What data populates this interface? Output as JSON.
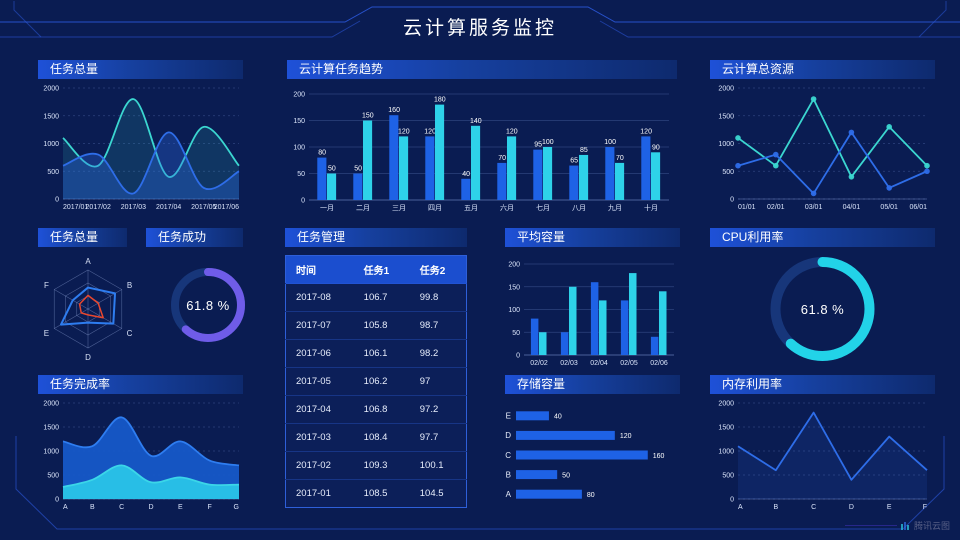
{
  "header": {
    "title": "云计算服务监控"
  },
  "watermark": {
    "label": "腾讯云图"
  },
  "colors": {
    "background": "#0a1c52",
    "accent_blue": "#1e62e6",
    "accent_cyan": "#2ed2e9",
    "accent_teal": "#3bd6d0",
    "accent_purple": "#6f5ce8",
    "accent_red": "#e8472e",
    "panel_header": "#1e51d8",
    "table_header": "#1b4ecf",
    "donut_track": "#17367a",
    "frame_line": "#2d5ae0"
  },
  "panels": {
    "task_total_line": {
      "title": "任务总量"
    },
    "task_trend": {
      "title": "云计算任务趋势"
    },
    "total_resources": {
      "title": "云计算总资源"
    },
    "task_total_radar": {
      "title": "任务总量"
    },
    "task_success": {
      "title": "任务成功",
      "value_label": "61.8 %"
    },
    "task_table": {
      "title": "任务管理"
    },
    "avg_capacity": {
      "title": "平均容量"
    },
    "cpu_usage": {
      "title": "CPU利用率",
      "value_label": "61.8 %"
    },
    "task_completion": {
      "title": "任务完成率"
    },
    "storage": {
      "title": "存储容量"
    },
    "memory": {
      "title": "内存利用率"
    }
  },
  "chart_data": [
    {
      "id": "task_total_line",
      "type": "area",
      "title": "任务总量",
      "x": [
        "2017/01",
        "2017/02",
        "2017/03",
        "2017/04",
        "2017/05",
        "2017/06"
      ],
      "series": [
        {
          "name": "series-teal",
          "color": "#3bd6d0",
          "values": [
            1100,
            600,
            1800,
            400,
            1300,
            600
          ],
          "fill_opacity": 0.14
        },
        {
          "name": "series-blue",
          "color": "#2e6de8",
          "values": [
            600,
            800,
            100,
            1200,
            200,
            500
          ],
          "fill_opacity": 0.32
        }
      ],
      "ylim": [
        0,
        2000
      ],
      "yticks": [
        0,
        500,
        1000,
        1500,
        2000
      ],
      "smooth": true,
      "grid": "dashed",
      "legend": "none"
    },
    {
      "id": "task_trend",
      "type": "bar",
      "title": "云计算任务趋势",
      "categories": [
        "一月",
        "二月",
        "三月",
        "四月",
        "五月",
        "六月",
        "七月",
        "八月",
        "九月",
        "十月"
      ],
      "series": [
        {
          "name": "任务1",
          "color": "#1e62e6",
          "values": [
            80,
            50,
            160,
            120,
            40,
            70,
            95,
            65,
            100,
            120
          ]
        },
        {
          "name": "任务2",
          "color": "#2ed2e9",
          "values": [
            50,
            150,
            120,
            180,
            140,
            120,
            100,
            85,
            70,
            90
          ]
        }
      ],
      "ylim": [
        0,
        200
      ],
      "yticks": [
        0,
        50,
        100,
        150,
        200
      ],
      "data_labels": true,
      "grid": "solid",
      "legend": "none"
    },
    {
      "id": "total_resources",
      "type": "line",
      "title": "云计算总资源",
      "x": [
        "01/01",
        "02/01",
        "03/01",
        "04/01",
        "05/01",
        "06/01"
      ],
      "series": [
        {
          "name": "series-teal",
          "color": "#3bd6d0",
          "values": [
            1100,
            600,
            1800,
            400,
            1300,
            600
          ]
        },
        {
          "name": "series-blue",
          "color": "#2e6de8",
          "values": [
            600,
            800,
            100,
            1200,
            200,
            500
          ]
        }
      ],
      "ylim": [
        0,
        2000
      ],
      "yticks": [
        0,
        500,
        1000,
        1500,
        2000
      ],
      "smooth": false,
      "markers": true,
      "grid": "dashed",
      "legend": "none"
    },
    {
      "id": "task_total_radar",
      "type": "radar",
      "title": "任务总量",
      "axes": [
        "A",
        "B",
        "C",
        "D",
        "E",
        "F"
      ],
      "max": 100,
      "grid_levels": 3,
      "series": [
        {
          "name": "series-blue",
          "color": "#2e7df0",
          "values": [
            55,
            80,
            75,
            35,
            80,
            45
          ]
        },
        {
          "name": "series-red",
          "color": "#e8472e",
          "values": [
            35,
            30,
            45,
            15,
            20,
            25
          ]
        }
      ]
    },
    {
      "id": "task_success",
      "type": "donut",
      "title": "任务成功",
      "value": 61.8,
      "unit": "%",
      "color": "#6f5ce8",
      "ring": 8
    },
    {
      "id": "task_table",
      "type": "table",
      "title": "任务管理",
      "columns": [
        "时间",
        "任务1",
        "任务2"
      ],
      "rows": [
        [
          "2017-08",
          "106.7",
          "99.8"
        ],
        [
          "2017-07",
          "105.8",
          "98.7"
        ],
        [
          "2017-06",
          "106.1",
          "98.2"
        ],
        [
          "2017-05",
          "106.2",
          "97"
        ],
        [
          "2017-04",
          "106.8",
          "97.2"
        ],
        [
          "2017-03",
          "108.4",
          "97.7"
        ],
        [
          "2017-02",
          "109.3",
          "100.1"
        ],
        [
          "2017-01",
          "108.5",
          "104.5"
        ]
      ]
    },
    {
      "id": "avg_capacity",
      "type": "bar",
      "title": "平均容量",
      "categories": [
        "02/02",
        "02/03",
        "02/04",
        "02/05",
        "02/06"
      ],
      "series": [
        {
          "name": "series-blue",
          "color": "#1e62e6",
          "values": [
            80,
            50,
            160,
            120,
            40
          ]
        },
        {
          "name": "series-cyan",
          "color": "#2ed2e9",
          "values": [
            50,
            150,
            120,
            180,
            140
          ]
        }
      ],
      "ylim": [
        0,
        200
      ],
      "yticks": [
        0,
        50,
        100,
        150,
        200
      ],
      "data_labels": false,
      "grid": "solid",
      "legend": "none"
    },
    {
      "id": "cpu_usage",
      "type": "donut",
      "title": "CPU利用率",
      "value": 61.8,
      "unit": "%",
      "color": "#22d3e8",
      "ring": 10
    },
    {
      "id": "task_completion",
      "type": "area",
      "title": "任务完成率",
      "x": [
        "A",
        "B",
        "C",
        "D",
        "E",
        "F",
        "G"
      ],
      "series": [
        {
          "name": "series-blue",
          "color": "#1658c8",
          "values": [
            1200,
            1100,
            1700,
            900,
            1200,
            800,
            700
          ],
          "fill_opacity": 0.95,
          "stroke": "#2e7df0"
        },
        {
          "name": "series-cyan",
          "color": "#29c4e8",
          "values": [
            250,
            400,
            700,
            350,
            450,
            300,
            300
          ],
          "fill_opacity": 0.95,
          "stroke": "#3bd6e8"
        }
      ],
      "ylim": [
        0,
        2000
      ],
      "yticks": [
        0,
        500,
        1000,
        1500,
        2000
      ],
      "smooth": true,
      "grid": "dashed",
      "legend": "none"
    },
    {
      "id": "storage",
      "type": "hbar",
      "title": "存储容量",
      "categories": [
        "E",
        "D",
        "C",
        "B",
        "A"
      ],
      "values": [
        40,
        120,
        160,
        50,
        80
      ],
      "color": "#1e62e6",
      "xlim": [
        0,
        170
      ],
      "data_labels": true
    },
    {
      "id": "memory",
      "type": "line",
      "title": "内存利用率",
      "x": [
        "A",
        "B",
        "C",
        "D",
        "E",
        "F"
      ],
      "series": [
        {
          "name": "series-blue",
          "color": "#2e6de8",
          "values": [
            1100,
            600,
            1800,
            400,
            1300,
            600
          ],
          "fill_opacity": 0.12
        }
      ],
      "ylim": [
        0,
        2000
      ],
      "yticks": [
        0,
        500,
        1000,
        1500,
        2000
      ],
      "smooth": false,
      "grid": "dashed",
      "legend": "none"
    }
  ]
}
